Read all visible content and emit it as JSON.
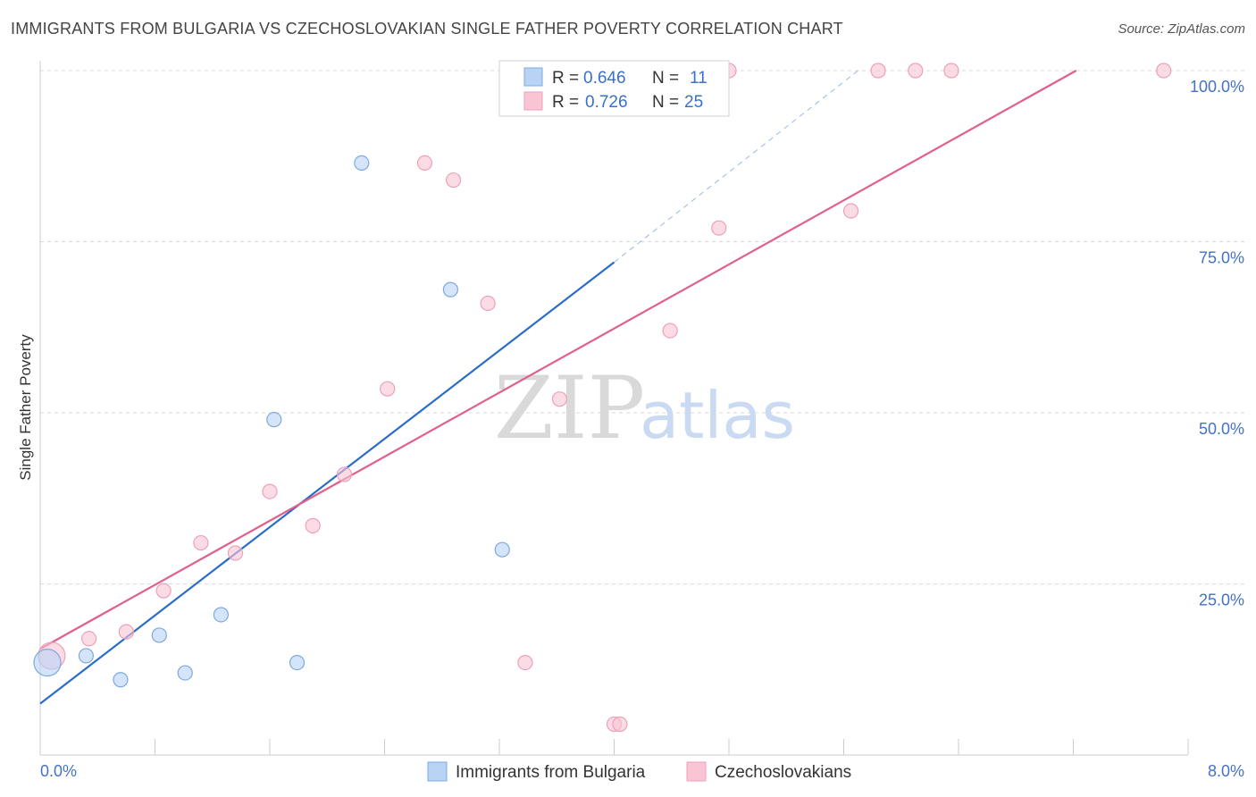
{
  "title": "IMMIGRANTS FROM BULGARIA VS CZECHOSLOVAKIAN SINGLE FATHER POVERTY CORRELATION CHART",
  "source": "Source: ZipAtlas.com",
  "watermark": {
    "zip": "ZIP",
    "atlas": "atlas"
  },
  "colors": {
    "blue_fill": "#b9d3f5",
    "blue_stroke": "#7fa8df",
    "blue_line": "#2a6cc9",
    "pink_fill": "#f9c4d4",
    "pink_stroke": "#eea0b8",
    "pink_line": "#e0608a",
    "grid": "#d8d8d8",
    "axis_text": "#4472c4"
  },
  "legend": {
    "rows": [
      {
        "r_label": "R =",
        "r_value": "0.646",
        "n_label": "N =",
        "n_value": "11"
      },
      {
        "r_label": "R =",
        "r_value": "0.726",
        "n_label": "N =",
        "n_value": "25"
      }
    ]
  },
  "chart_data": {
    "type": "scatter",
    "title": "IMMIGRANTS FROM BULGARIA VS CZECHOSLOVAKIAN SINGLE FATHER POVERTY CORRELATION CHART",
    "xlabel": "",
    "ylabel": "Single Father Poverty",
    "xlim": [
      0,
      8
    ],
    "ylim": [
      0,
      100
    ],
    "x_tick_labels": [
      "0.0%",
      "8.0%"
    ],
    "y_ticks": [
      25,
      50,
      75,
      100
    ],
    "y_tick_labels": [
      "25.0%",
      "50.0%",
      "75.0%",
      "100.0%"
    ],
    "legend_position": "top-center",
    "series": [
      {
        "name": "Immigrants from Bulgaria",
        "points": [
          {
            "x": 0.05,
            "y": 13.5,
            "big": true
          },
          {
            "x": 0.32,
            "y": 14.5
          },
          {
            "x": 0.56,
            "y": 11.0
          },
          {
            "x": 0.83,
            "y": 17.5
          },
          {
            "x": 1.01,
            "y": 12.0
          },
          {
            "x": 1.26,
            "y": 20.5
          },
          {
            "x": 1.63,
            "y": 49.0
          },
          {
            "x": 1.79,
            "y": 13.5
          },
          {
            "x": 2.24,
            "y": 86.5
          },
          {
            "x": 2.86,
            "y": 68.0
          },
          {
            "x": 3.22,
            "y": 30.0
          }
        ],
        "trend": {
          "x0": 0.0,
          "y0": 7.5,
          "x1": 4.0,
          "y1": 72.0,
          "dash_x1": 5.7,
          "dash_y1": 100.0
        }
      },
      {
        "name": "Czechoslovakians",
        "points": [
          {
            "x": 0.08,
            "y": 14.5,
            "big": true
          },
          {
            "x": 0.34,
            "y": 17.0
          },
          {
            "x": 0.6,
            "y": 18.0
          },
          {
            "x": 0.86,
            "y": 24.0
          },
          {
            "x": 1.12,
            "y": 31.0
          },
          {
            "x": 1.36,
            "y": 29.5
          },
          {
            "x": 1.6,
            "y": 38.5
          },
          {
            "x": 1.9,
            "y": 33.5
          },
          {
            "x": 2.12,
            "y": 41.0
          },
          {
            "x": 2.42,
            "y": 53.5
          },
          {
            "x": 2.68,
            "y": 86.5
          },
          {
            "x": 2.88,
            "y": 84.0
          },
          {
            "x": 3.12,
            "y": 66.0
          },
          {
            "x": 3.38,
            "y": 13.5
          },
          {
            "x": 3.62,
            "y": 52.0
          },
          {
            "x": 4.0,
            "y": 4.5
          },
          {
            "x": 4.04,
            "y": 4.5
          },
          {
            "x": 4.39,
            "y": 62.0
          },
          {
            "x": 4.73,
            "y": 77.0
          },
          {
            "x": 4.8,
            "y": 100.0
          },
          {
            "x": 5.65,
            "y": 79.5
          },
          {
            "x": 5.84,
            "y": 100.0
          },
          {
            "x": 6.1,
            "y": 100.0
          },
          {
            "x": 6.35,
            "y": 100.0
          },
          {
            "x": 7.83,
            "y": 100.0
          }
        ],
        "trend": {
          "x0": 0.0,
          "y0": 15.5,
          "x1": 7.22,
          "y1": 100.0
        }
      }
    ]
  }
}
